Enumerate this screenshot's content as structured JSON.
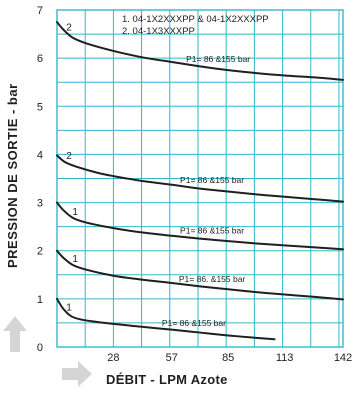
{
  "chart_data": {
    "type": "line",
    "xlabel": "DÉBIT - LPM Azote",
    "ylabel": "PRESSION DE SORTIE - bar",
    "x_ticks": [
      28,
      57,
      85,
      113,
      142
    ],
    "y_ticks": [
      0,
      1,
      2,
      3,
      4,
      5,
      6,
      7
    ],
    "xlim": [
      0,
      142
    ],
    "ylim": [
      0,
      7
    ],
    "grid": true,
    "legend": [
      "1. 04-1X2XXXPP & 04-1X2XXXPP",
      "2. 04-1X3XXXPP"
    ],
    "series": [
      {
        "curve_number": "2",
        "label": "P1= 86 &155 bar",
        "points": [
          [
            0,
            6.75
          ],
          [
            3,
            6.6
          ],
          [
            8,
            6.42
          ],
          [
            15,
            6.3
          ],
          [
            28,
            6.15
          ],
          [
            42,
            6.02
          ],
          [
            57,
            5.92
          ],
          [
            71,
            5.83
          ],
          [
            85,
            5.75
          ],
          [
            99,
            5.69
          ],
          [
            113,
            5.64
          ],
          [
            128,
            5.6
          ],
          [
            142,
            5.55
          ]
        ]
      },
      {
        "curve_number": "2",
        "label": "P1= 86 &155 bar",
        "points": [
          [
            0,
            3.98
          ],
          [
            4,
            3.84
          ],
          [
            10,
            3.74
          ],
          [
            20,
            3.62
          ],
          [
            28,
            3.55
          ],
          [
            42,
            3.45
          ],
          [
            57,
            3.37
          ],
          [
            71,
            3.29
          ],
          [
            85,
            3.23
          ],
          [
            99,
            3.17
          ],
          [
            113,
            3.12
          ],
          [
            128,
            3.07
          ],
          [
            142,
            3.02
          ]
        ]
      },
      {
        "curve_number": "1",
        "label": "P1= 86 &155 bar",
        "points": [
          [
            0,
            3.0
          ],
          [
            3,
            2.85
          ],
          [
            8,
            2.68
          ],
          [
            15,
            2.58
          ],
          [
            28,
            2.47
          ],
          [
            42,
            2.38
          ],
          [
            57,
            2.31
          ],
          [
            71,
            2.25
          ],
          [
            85,
            2.2
          ],
          [
            99,
            2.15
          ],
          [
            113,
            2.11
          ],
          [
            128,
            2.07
          ],
          [
            142,
            2.03
          ]
        ]
      },
      {
        "curve_number": "1",
        "label": "P1= 86. &155 bar",
        "points": [
          [
            0,
            2.0
          ],
          [
            3,
            1.86
          ],
          [
            8,
            1.7
          ],
          [
            15,
            1.6
          ],
          [
            28,
            1.48
          ],
          [
            42,
            1.4
          ],
          [
            57,
            1.33
          ],
          [
            71,
            1.26
          ],
          [
            85,
            1.2
          ],
          [
            99,
            1.14
          ],
          [
            113,
            1.09
          ],
          [
            128,
            1.04
          ],
          [
            142,
            0.99
          ]
        ]
      },
      {
        "curve_number": "1",
        "label": "P1= 86 &155 bar",
        "points": [
          [
            0,
            1.0
          ],
          [
            3,
            0.8
          ],
          [
            7,
            0.64
          ],
          [
            12,
            0.57
          ],
          [
            20,
            0.52
          ],
          [
            28,
            0.48
          ],
          [
            42,
            0.42
          ],
          [
            57,
            0.36
          ],
          [
            71,
            0.3
          ],
          [
            85,
            0.24
          ],
          [
            99,
            0.19
          ],
          [
            108,
            0.16
          ]
        ]
      }
    ]
  },
  "colors": {
    "background": "#ffffff",
    "grid": "#35b7c9",
    "curve": "#1f1f1f",
    "arrow": "#d5d5d5",
    "text": "#1f1f1f"
  }
}
